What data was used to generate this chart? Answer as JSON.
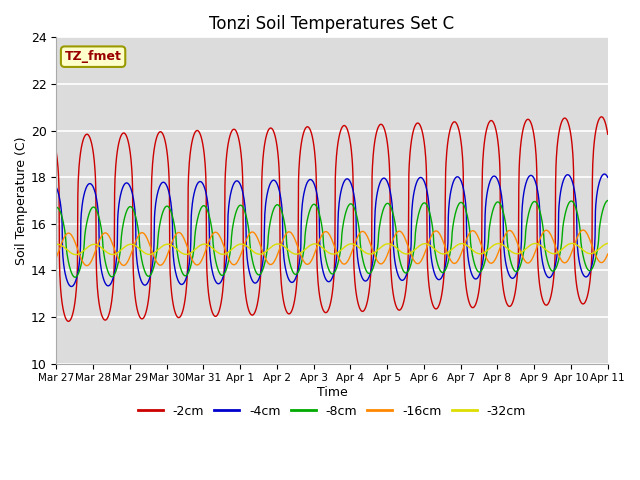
{
  "title": "Tonzi Soil Temperatures Set C",
  "xlabel": "Time",
  "ylabel": "Soil Temperature (C)",
  "ylim": [
    10,
    24
  ],
  "annotation": "TZ_fmet",
  "background_color": "#dcdcdc",
  "series": [
    {
      "label": "-2cm",
      "color": "#cc0000",
      "amp": 4.0,
      "mean": 15.8,
      "phase": 0.0,
      "sharpness": 3.5
    },
    {
      "label": "-4cm",
      "color": "#0000cc",
      "amp": 2.2,
      "mean": 15.5,
      "phase": 0.08,
      "sharpness": 2.5
    },
    {
      "label": "-8cm",
      "color": "#00aa00",
      "amp": 1.5,
      "mean": 15.2,
      "phase": 0.18,
      "sharpness": 1.5
    },
    {
      "label": "-16cm",
      "color": "#ff8800",
      "amp": 0.7,
      "mean": 14.9,
      "phase": 0.5,
      "sharpness": 1.0
    },
    {
      "label": "-32cm",
      "color": "#dddd00",
      "amp": 0.22,
      "mean": 14.9,
      "phase": 1.2,
      "sharpness": 1.0
    }
  ],
  "x_tick_labels": [
    "Mar 27",
    "Mar 28",
    "Mar 29",
    "Mar 30",
    "Mar 31",
    "Apr 1",
    "Apr 2",
    "Apr 3",
    "Apr 4",
    "Apr 5",
    "Apr 6",
    "Apr 7",
    "Apr 8",
    "Apr 9",
    "Apr 10",
    "Apr 11"
  ],
  "n_days": 15,
  "samples_per_day": 96
}
